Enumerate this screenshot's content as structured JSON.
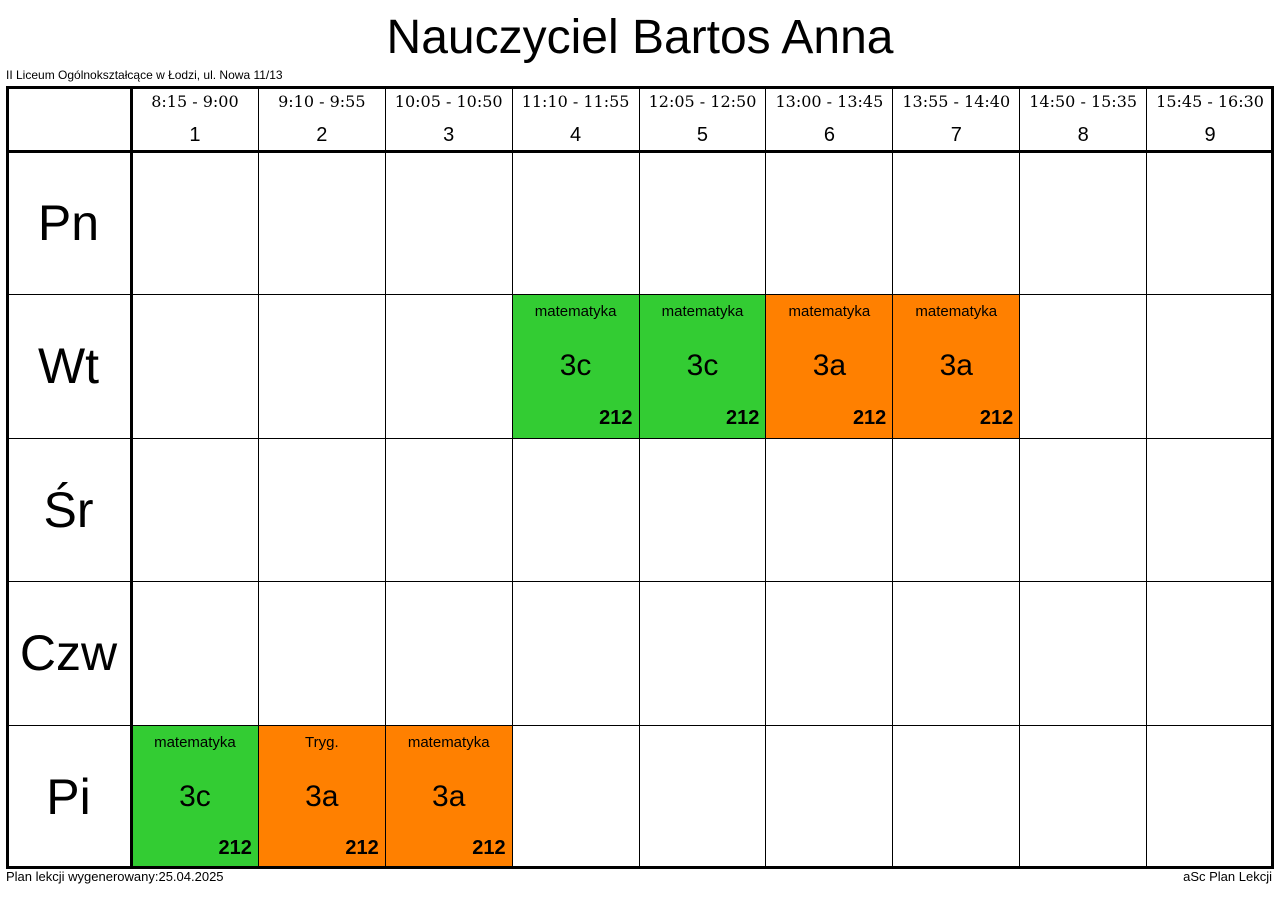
{
  "header": {
    "title": "Nauczyciel Bartos Anna",
    "school": "II Liceum Ogólnokształcące w Łodzi, ul. Nowa 11/13"
  },
  "periods": [
    {
      "time": "8:15 - 9:00",
      "number": 1
    },
    {
      "time": "9:10 - 9:55",
      "number": 2
    },
    {
      "time": "10:05 - 10:50",
      "number": 3
    },
    {
      "time": "11:10 - 11:55",
      "number": 4
    },
    {
      "time": "12:05 - 12:50",
      "number": 5
    },
    {
      "time": "13:00 - 13:45",
      "number": 6
    },
    {
      "time": "13:55 - 14:40",
      "number": 7
    },
    {
      "time": "14:50 - 15:35",
      "number": 8
    },
    {
      "time": "15:45 - 16:30",
      "number": 9
    }
  ],
  "days": [
    {
      "day": "Pn",
      "cells": [
        null,
        null,
        null,
        null,
        null,
        null,
        null,
        null,
        null
      ]
    },
    {
      "day": "Wt",
      "cells": [
        null,
        null,
        null,
        {
          "subject": "matematyka",
          "class": "3c",
          "room": "212",
          "color": "#33cc33"
        },
        {
          "subject": "matematyka",
          "class": "3c",
          "room": "212",
          "color": "#33cc33"
        },
        {
          "subject": "matematyka",
          "class": "3a",
          "room": "212",
          "color": "#ff8000"
        },
        {
          "subject": "matematyka",
          "class": "3a",
          "room": "212",
          "color": "#ff8000"
        },
        null,
        null
      ]
    },
    {
      "day": "Śr",
      "cells": [
        null,
        null,
        null,
        null,
        null,
        null,
        null,
        null,
        null
      ]
    },
    {
      "day": "Czw",
      "cells": [
        null,
        null,
        null,
        null,
        null,
        null,
        null,
        null,
        null
      ]
    },
    {
      "day": "Pi",
      "cells": [
        {
          "subject": "matematyka",
          "class": "3c",
          "room": "212",
          "color": "#33cc33"
        },
        {
          "subject": "Tryg.",
          "class": "3a",
          "room": "212",
          "color": "#ff8000"
        },
        {
          "subject": "matematyka",
          "class": "3a",
          "room": "212",
          "color": "#ff8000"
        },
        null,
        null,
        null,
        null,
        null,
        null
      ]
    }
  ],
  "footer": {
    "generated": "Plan lekcji wygenerowany:25.04.2025",
    "software": "aSc Plan Lekcji"
  }
}
